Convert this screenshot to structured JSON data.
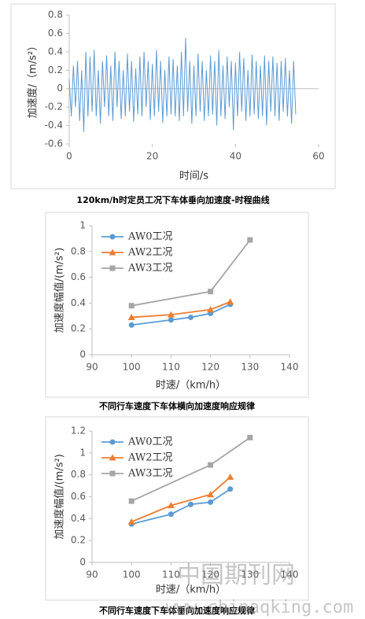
{
  "chart_data": [
    {
      "type": "line",
      "title": "120km/h时定员工况下车体垂向加速度-时程曲线",
      "x_label": "时间/s",
      "y_label": "加速度/（m/s²）",
      "xlim": [
        0,
        60
      ],
      "xticks": [
        0,
        20,
        40,
        60
      ],
      "ylim": [
        -0.6,
        0.8
      ],
      "yticks": [
        -0.6,
        -0.4,
        -0.2,
        0,
        0.2,
        0.4,
        0.6,
        0.8
      ],
      "grid": false,
      "series": [
        {
          "color": "#5b9bd5",
          "marker": "none",
          "x": [
            0,
            0.5,
            1,
            1.5,
            2,
            2.5,
            3,
            3.5,
            4,
            4.5,
            5,
            5.5,
            6,
            6.5,
            7,
            7.5,
            8,
            8.5,
            9,
            9.5,
            10,
            10.5,
            11,
            11.5,
            12,
            12.5,
            13,
            13.5,
            14,
            14.5,
            15,
            15.5,
            16,
            16.5,
            17,
            17.5,
            18,
            18.5,
            19,
            19.5,
            20,
            20.5,
            21,
            21.5,
            22,
            22.5,
            23,
            23.5,
            24,
            24.5,
            25,
            25.5,
            26,
            26.5,
            27,
            27.5,
            28,
            28.5,
            29,
            29.5,
            30,
            30.5,
            31,
            31.5,
            32,
            32.5,
            33,
            33.5,
            34,
            34.5,
            35,
            35.5,
            36,
            36.5,
            37,
            37.5,
            38,
            38.5,
            39,
            39.5,
            40,
            40.5,
            41,
            41.5,
            42,
            42.5,
            43,
            43.5,
            44,
            44.5,
            45,
            45.5,
            46,
            46.5,
            47,
            47.5,
            48,
            48.5,
            49,
            49.5,
            50,
            50.5,
            51,
            51.5,
            52,
            52.5,
            53,
            53.5,
            54,
            54.5
          ],
          "values": [
            0.1,
            -0.3,
            0.25,
            -0.2,
            0.3,
            -0.35,
            0.2,
            -0.47,
            0.4,
            -0.3,
            0.35,
            -0.25,
            0.42,
            -0.3,
            0.2,
            -0.38,
            0.3,
            -0.2,
            0.36,
            -0.3,
            0.25,
            -0.35,
            0.4,
            -0.2,
            0.3,
            -0.33,
            0.2,
            -0.3,
            0.38,
            -0.25,
            0.3,
            -0.36,
            0.22,
            -0.28,
            0.35,
            -0.3,
            0.4,
            -0.2,
            0.3,
            -0.34,
            0.27,
            -0.3,
            0.42,
            -0.25,
            0.3,
            -0.37,
            0.2,
            -0.3,
            0.35,
            -0.28,
            0.32,
            -0.3,
            0.25,
            -0.35,
            0.4,
            -0.3,
            0.55,
            -0.25,
            0.3,
            -0.38,
            0.25,
            -0.3,
            0.38,
            -0.25,
            0.3,
            -0.35,
            0.2,
            -0.3,
            0.36,
            -0.28,
            0.3,
            -0.4,
            0.42,
            -0.3,
            0.25,
            -0.33,
            0.35,
            -0.2,
            0.3,
            -0.45,
            0.28,
            -0.3,
            0.4,
            -0.25,
            0.33,
            -0.35,
            0.2,
            -0.3,
            0.37,
            -0.28,
            0.3,
            -0.33,
            0.25,
            -0.3,
            0.36,
            -0.4,
            0.3,
            -0.25,
            0.35,
            -0.3,
            0.28,
            -0.35,
            0.3,
            -0.25,
            0.33,
            -0.3,
            0.2,
            -0.38,
            0.3,
            -0.28
          ]
        }
      ]
    },
    {
      "type": "line",
      "title": "不同行车速度下车体横向加速度响应规律",
      "x_label": "时速/（km/h）",
      "y_label": "加速度幅值/(m/s²)",
      "xlim": [
        90,
        140
      ],
      "xticks": [
        90,
        100,
        110,
        120,
        130,
        140
      ],
      "ylim": [
        0,
        1
      ],
      "yticks": [
        0,
        0.2,
        0.4,
        0.6,
        0.8,
        1
      ],
      "grid": false,
      "legend": "upper left",
      "series": [
        {
          "name": "AW0工况",
          "color": "#5b9bd5",
          "marker": "circle",
          "x": [
            100,
            110,
            115,
            120,
            125
          ],
          "values": [
            0.23,
            0.27,
            0.29,
            0.32,
            0.39
          ]
        },
        {
          "name": "AW2工况",
          "color": "#ed7d31",
          "marker": "triangle",
          "x": [
            100,
            110,
            120,
            125
          ],
          "values": [
            0.29,
            0.31,
            0.35,
            0.41
          ]
        },
        {
          "name": "AW3工况",
          "color": "#a5a5a5",
          "marker": "square",
          "x": [
            100,
            120,
            130
          ],
          "values": [
            0.38,
            0.49,
            0.89
          ]
        }
      ]
    },
    {
      "type": "line",
      "title": "不同行车速度下车体垂向加速度响应规律",
      "x_label": "时速/（km/h）",
      "y_label": "加速度幅值/(m/s²)",
      "xlim": [
        90,
        140
      ],
      "xticks": [
        90,
        100,
        110,
        120,
        130,
        140
      ],
      "ylim": [
        0,
        1.2
      ],
      "yticks": [
        0,
        0.2,
        0.4,
        0.6,
        0.8,
        1,
        1.2
      ],
      "grid": false,
      "legend": "upper left",
      "series": [
        {
          "name": "AW0工况",
          "color": "#5b9bd5",
          "marker": "circle",
          "x": [
            100,
            110,
            115,
            120,
            125
          ],
          "values": [
            0.35,
            0.44,
            0.53,
            0.55,
            0.67
          ]
        },
        {
          "name": "AW2工况",
          "color": "#ed7d31",
          "marker": "triangle",
          "x": [
            100,
            110,
            120,
            125
          ],
          "values": [
            0.37,
            0.52,
            0.62,
            0.78
          ]
        },
        {
          "name": "AW3工况",
          "color": "#a5a5a5",
          "marker": "square",
          "x": [
            100,
            120,
            130
          ],
          "values": [
            0.56,
            0.89,
            1.14
          ]
        }
      ]
    }
  ],
  "watermark": [
    "中国期刊网",
    "www.chinaqking.com"
  ]
}
